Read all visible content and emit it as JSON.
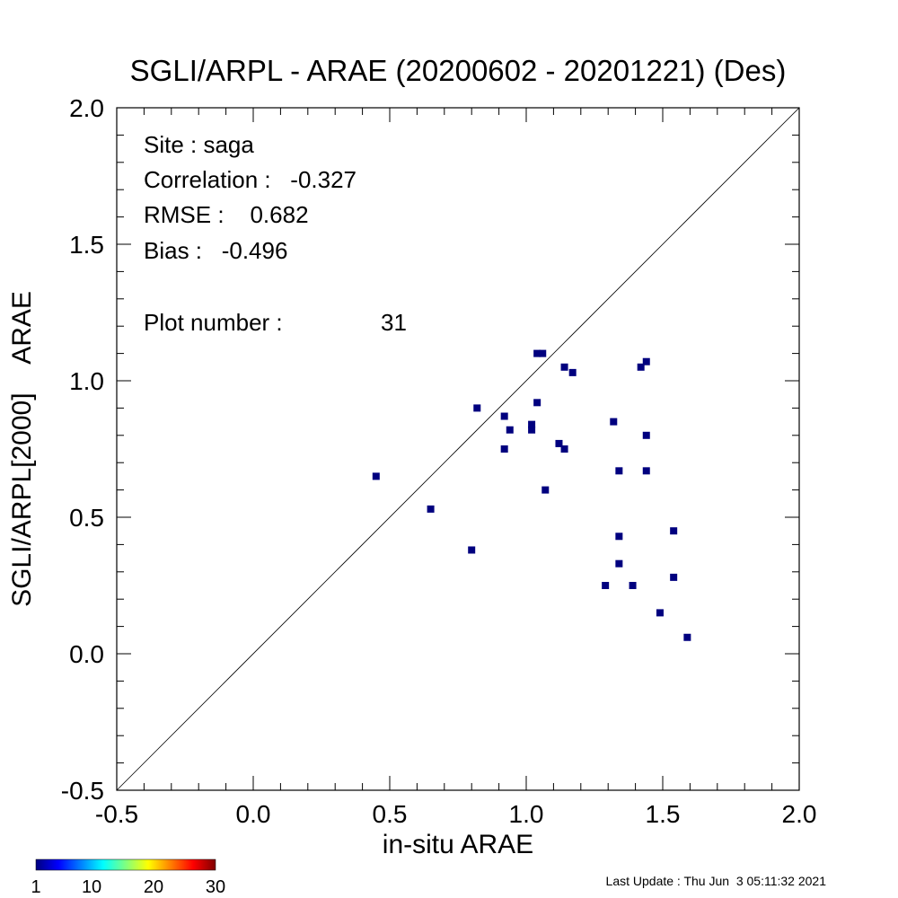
{
  "chart_data": {
    "type": "scatter",
    "title": "SGLI/ARPL - ARAE (20200602 - 20201221) (Des)",
    "xlabel": "in-situ ARAE",
    "ylabel": "SGLI/ARPL[2000]    ARAE",
    "xlim": [
      -0.5,
      2.0
    ],
    "ylim": [
      -0.5,
      2.0
    ],
    "x_ticks": [
      "-0.5",
      "0.0",
      "0.5",
      "1.0",
      "1.5",
      "2.0"
    ],
    "y_ticks": [
      "-0.5",
      "0.0",
      "0.5",
      "1.0",
      "1.5",
      "2.0"
    ],
    "x_tick_values": [
      -0.5,
      0.0,
      0.5,
      1.0,
      1.5,
      2.0
    ],
    "y_tick_values": [
      -0.5,
      0.0,
      0.5,
      1.0,
      1.5,
      2.0
    ],
    "minor_tick_step": 0.1,
    "reference_line": "1:1",
    "grid": false,
    "marker_color": "#00007f",
    "points": [
      {
        "x": 0.45,
        "y": 0.65
      },
      {
        "x": 0.65,
        "y": 0.53
      },
      {
        "x": 0.8,
        "y": 0.38
      },
      {
        "x": 0.82,
        "y": 0.9
      },
      {
        "x": 0.92,
        "y": 0.87
      },
      {
        "x": 0.92,
        "y": 0.75
      },
      {
        "x": 0.94,
        "y": 0.82
      },
      {
        "x": 1.02,
        "y": 0.84
      },
      {
        "x": 1.02,
        "y": 0.82
      },
      {
        "x": 1.04,
        "y": 1.1
      },
      {
        "x": 1.06,
        "y": 1.1
      },
      {
        "x": 1.04,
        "y": 0.92
      },
      {
        "x": 1.07,
        "y": 0.6
      },
      {
        "x": 1.12,
        "y": 0.77
      },
      {
        "x": 1.14,
        "y": 0.75
      },
      {
        "x": 1.14,
        "y": 1.05
      },
      {
        "x": 1.17,
        "y": 1.03
      },
      {
        "x": 1.29,
        "y": 0.25
      },
      {
        "x": 1.32,
        "y": 0.85
      },
      {
        "x": 1.34,
        "y": 0.67
      },
      {
        "x": 1.34,
        "y": 0.43
      },
      {
        "x": 1.34,
        "y": 0.33
      },
      {
        "x": 1.39,
        "y": 0.25
      },
      {
        "x": 1.42,
        "y": 1.05
      },
      {
        "x": 1.44,
        "y": 1.07
      },
      {
        "x": 1.44,
        "y": 0.8
      },
      {
        "x": 1.44,
        "y": 0.67
      },
      {
        "x": 1.49,
        "y": 0.15
      },
      {
        "x": 1.54,
        "y": 0.45
      },
      {
        "x": 1.54,
        "y": 0.28
      },
      {
        "x": 1.59,
        "y": 0.06
      }
    ],
    "annotations": {
      "site": "Site : saga",
      "correlation": "Correlation :   -0.327",
      "rmse": "RMSE :    0.682",
      "bias": "Bias :   -0.496",
      "plot_number_label": "Plot number :",
      "plot_number_value": "31"
    },
    "colorbar": {
      "min": 1,
      "max": 30,
      "tick_labels": [
        "1",
        "10",
        "20",
        "30"
      ],
      "tick_values": [
        1,
        10,
        20,
        30
      ],
      "colormap": "jet"
    }
  },
  "footer": {
    "last_update": "Last Update : Thu Jun  3 05:11:32 2021"
  }
}
